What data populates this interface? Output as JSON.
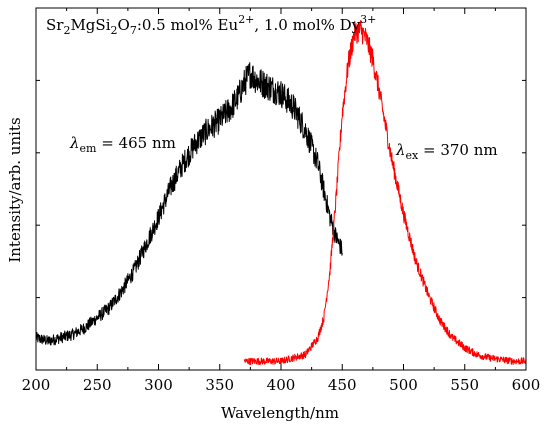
{
  "chart_data": {
    "type": "line",
    "title": "",
    "xlabel": "Wavelength/nm",
    "ylabel": "Intensity/arb. units",
    "xlim": [
      200,
      600
    ],
    "ylim": [
      0,
      1
    ],
    "x_ticks": [
      200,
      250,
      300,
      350,
      400,
      450,
      500,
      550,
      600
    ],
    "grid": false,
    "legend": "none",
    "annotations": {
      "sample": {
        "base": "Sr",
        "s1": "2",
        "b2": "MgSi",
        "s2": "2",
        "b3": "O",
        "s3": "7",
        "b4": ":0.5 mol% Eu",
        "sup1": "2+",
        "b5": ", 1.0 mol% Dy",
        "sup2": "3+"
      },
      "em_label": {
        "sym": "λ",
        "sub": "em",
        "rest": " = 465 nm"
      },
      "ex_label": {
        "sym": "λ",
        "sub": "ex",
        "rest": " = 370 nm"
      }
    },
    "series": [
      {
        "color": "#000000",
        "x": [
          200,
          210,
          220,
          230,
          240,
          250,
          260,
          270,
          280,
          290,
          300,
          310,
          320,
          330,
          340,
          350,
          360,
          365,
          370,
          375,
          380,
          390,
          400,
          410,
          420,
          430,
          435,
          440,
          445,
          450
        ],
        "y": [
          0.08,
          0.07,
          0.08,
          0.09,
          0.11,
          0.14,
          0.17,
          0.22,
          0.28,
          0.36,
          0.44,
          0.53,
          0.6,
          0.66,
          0.7,
          0.73,
          0.77,
          0.8,
          0.84,
          0.87,
          0.85,
          0.83,
          0.81,
          0.77,
          0.7,
          0.6,
          0.52,
          0.44,
          0.38,
          0.34
        ],
        "noise": 0.035
      },
      {
        "color": "#ff0000",
        "x": [
          370,
          380,
          390,
          400,
          410,
          420,
          430,
          435,
          440,
          445,
          450,
          455,
          460,
          465,
          470,
          475,
          480,
          485,
          490,
          500,
          510,
          520,
          530,
          540,
          550,
          560,
          570,
          580,
          590,
          600
        ],
        "y": [
          0.01,
          0.01,
          0.01,
          0.01,
          0.02,
          0.03,
          0.08,
          0.14,
          0.28,
          0.5,
          0.75,
          0.9,
          0.99,
          1.0,
          0.97,
          0.91,
          0.82,
          0.72,
          0.62,
          0.45,
          0.31,
          0.21,
          0.13,
          0.08,
          0.05,
          0.03,
          0.02,
          0.015,
          0.01,
          0.01
        ],
        "noise": 0.025
      }
    ]
  }
}
